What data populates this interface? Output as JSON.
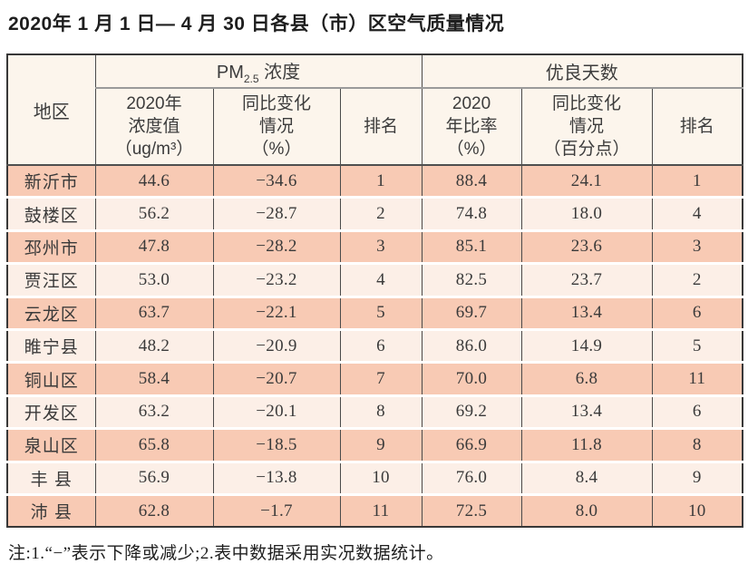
{
  "title": "2020年 1 月 1 日— 4 月 30 日各县（市）区空气质量情况",
  "table": {
    "region_header": "地区",
    "groups": [
      {
        "prefix": "PM",
        "sub": "2.5",
        "suffix": " 浓度"
      },
      {
        "label": "优良天数"
      }
    ],
    "subheaders": [
      "2020年\n浓度值\n（ug/m³）",
      "同比变化\n情况\n（%）",
      "排名",
      "2020\n年比率\n（%）",
      "同比变化\n情况\n（百分点）",
      "排名"
    ],
    "column_keys": [
      "region",
      "pm25_value",
      "pm25_change",
      "pm25_rank",
      "good_ratio",
      "good_change",
      "good_rank"
    ],
    "rows": [
      {
        "region": "新沂市",
        "pm25_value": "44.6",
        "pm25_change": "−34.6",
        "pm25_rank": "1",
        "good_ratio": "88.4",
        "good_change": "24.1",
        "good_rank": "1"
      },
      {
        "region": "鼓楼区",
        "pm25_value": "56.2",
        "pm25_change": "−28.7",
        "pm25_rank": "2",
        "good_ratio": "74.8",
        "good_change": "18.0",
        "good_rank": "4"
      },
      {
        "region": "邳州市",
        "pm25_value": "47.8",
        "pm25_change": "−28.2",
        "pm25_rank": "3",
        "good_ratio": "85.1",
        "good_change": "23.6",
        "good_rank": "3"
      },
      {
        "region": "贾汪区",
        "pm25_value": "53.0",
        "pm25_change": "−23.2",
        "pm25_rank": "4",
        "good_ratio": "82.5",
        "good_change": "23.7",
        "good_rank": "2"
      },
      {
        "region": "云龙区",
        "pm25_value": "63.7",
        "pm25_change": "−22.1",
        "pm25_rank": "5",
        "good_ratio": "69.7",
        "good_change": "13.4",
        "good_rank": "6"
      },
      {
        "region": "睢宁县",
        "pm25_value": "48.2",
        "pm25_change": "−20.9",
        "pm25_rank": "6",
        "good_ratio": "86.0",
        "good_change": "14.9",
        "good_rank": "5"
      },
      {
        "region": "铜山区",
        "pm25_value": "58.4",
        "pm25_change": "−20.7",
        "pm25_rank": "7",
        "good_ratio": "70.0",
        "good_change": "6.8",
        "good_rank": "11"
      },
      {
        "region": "开发区",
        "pm25_value": "63.2",
        "pm25_change": "−20.1",
        "pm25_rank": "8",
        "good_ratio": "69.2",
        "good_change": "13.4",
        "good_rank": "6"
      },
      {
        "region": "泉山区",
        "pm25_value": "65.8",
        "pm25_change": "−18.5",
        "pm25_rank": "9",
        "good_ratio": "66.9",
        "good_change": "11.8",
        "good_rank": "8"
      },
      {
        "region": "丰 县",
        "pm25_value": "56.9",
        "pm25_change": "−13.8",
        "pm25_rank": "10",
        "good_ratio": "76.0",
        "good_change": "8.4",
        "good_rank": "9"
      },
      {
        "region": "沛 县",
        "pm25_value": "62.8",
        "pm25_change": "−1.7",
        "pm25_rank": "11",
        "good_ratio": "72.5",
        "good_change": "8.0",
        "good_rank": "10"
      }
    ]
  },
  "note": "注:1.“−”表示下降或减少;2.表中数据采用实况数据统计。",
  "colors": {
    "row_odd": "#f8cab4",
    "row_even": "#fcefe7",
    "header_bg": "#fcf5ec",
    "border_dark": "#383838",
    "border_gray": "#9a9a9a"
  }
}
